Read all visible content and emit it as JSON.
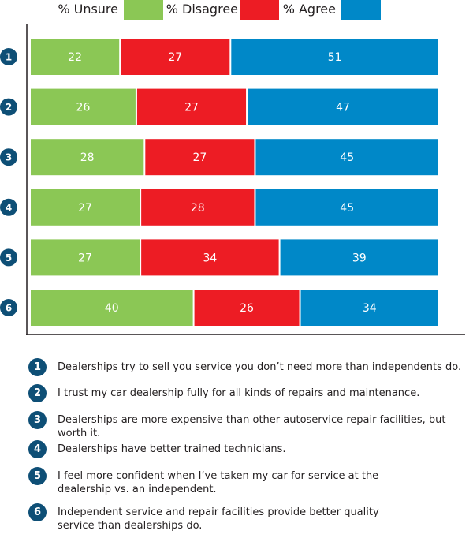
{
  "chart_data": {
    "type": "bar",
    "orientation": "horizontal",
    "stacked": true,
    "categories": [
      "1",
      "2",
      "3",
      "4",
      "5",
      "6"
    ],
    "series": [
      {
        "name": "% Unsure",
        "color": "#8bc755",
        "values": [
          22,
          26,
          28,
          27,
          27,
          40
        ]
      },
      {
        "name": "% Disagree",
        "color": "#ed1c24",
        "values": [
          27,
          27,
          27,
          28,
          34,
          26
        ]
      },
      {
        "name": "% Agree",
        "color": "#0088c8",
        "values": [
          51,
          47,
          45,
          45,
          39,
          34
        ]
      }
    ],
    "xlim": [
      0,
      100
    ],
    "legend": "top",
    "grid": false
  },
  "statements": [
    {
      "num": "1",
      "text": "Dealerships try to sell you service you don’t need more than independents do."
    },
    {
      "num": "2",
      "text": "I trust my car dealership fully for all kinds of repairs and maintenance."
    },
    {
      "num": "3",
      "text": "Dealerships are more expensive than other autoservice repair facilities, but worth it."
    },
    {
      "num": "4",
      "text": "Dealerships have better trained technicians."
    },
    {
      "num": "5",
      "text": "I feel more confident when I’ve taken my car for service at the dealership vs. an independent."
    },
    {
      "num": "6",
      "text": "Independent service and repair facilities provide better quality service than dealerships do."
    }
  ],
  "badge_color": "#0e4f76"
}
